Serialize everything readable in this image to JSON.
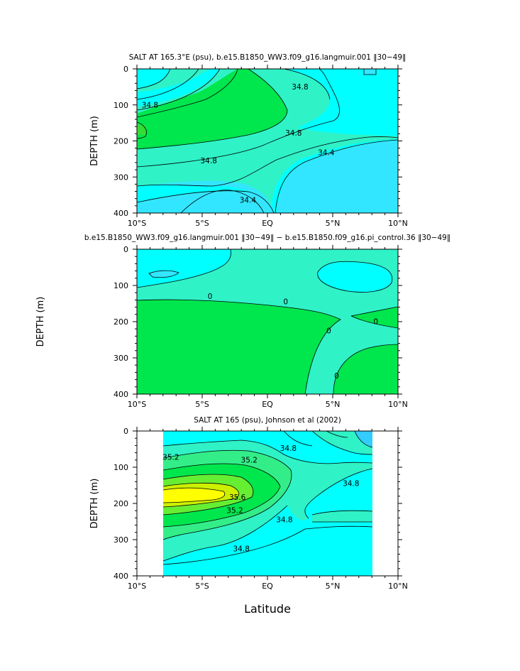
{
  "chart_data": [
    {
      "type": "contour",
      "title": "SALT AT 165.3°E (psu), b.e15.B1850_WW3.f09_g16.langmuir.001 ‖30−49‖",
      "ylabel": "DEPTH (m)",
      "xlabel": "",
      "xlim": [
        -10,
        10
      ],
      "ylim": [
        400,
        0
      ],
      "x_ticks": [
        "10°S",
        "5°S",
        "EQ",
        "5°N",
        "10°N"
      ],
      "y_ticks": [
        "0",
        "100",
        "200",
        "300",
        "400"
      ],
      "contour_labels": [
        {
          "text": "34.8",
          "x": -9.0,
          "y": 100
        },
        {
          "text": "34.8",
          "x": 2.5,
          "y": 50
        },
        {
          "text": "34.8",
          "x": -4.5,
          "y": 255
        },
        {
          "text": "34.8",
          "x": 2.0,
          "y": 178
        },
        {
          "text": "34.4",
          "x": 4.5,
          "y": 233
        },
        {
          "text": "34.4",
          "x": -1.5,
          "y": 365
        }
      ],
      "colors": {
        "low": "#33e6ff",
        "mid_low": "#00ffff",
        "mid": "#2ff2c7",
        "high": "#00e64d"
      }
    },
    {
      "type": "contour",
      "title": "b.e15.B1850_WW3.f09_g16.langmuir.001 ‖30−49‖ − b.e15.B1850.f09_g16.pi_control.36 ‖30−49‖",
      "ylabel": "DEPTH (m)",
      "xlabel": "",
      "xlim": [
        -10,
        10
      ],
      "ylim": [
        400,
        0
      ],
      "x_ticks": [
        "10°S",
        "5°S",
        "EQ",
        "5°N",
        "10°N"
      ],
      "y_ticks": [
        "0",
        "100",
        "200",
        "300",
        "400"
      ],
      "contour_labels": [
        {
          "text": "0",
          "x": -4.4,
          "y": 130
        },
        {
          "text": "0",
          "x": 1.4,
          "y": 145
        },
        {
          "text": "0",
          "x": 4.7,
          "y": 225
        },
        {
          "text": "0",
          "x": 8.3,
          "y": 200
        },
        {
          "text": "0",
          "x": 5.3,
          "y": 350
        }
      ],
      "colors": {
        "negative": "#00ffff",
        "near_zero": "#2ff2c7",
        "positive": "#00e64d"
      }
    },
    {
      "type": "contour",
      "title": "SALT AT 165 (psu), Johnson et al (2002)",
      "ylabel": "DEPTH (m)",
      "xlabel": "Latitude",
      "xlim": [
        -10,
        10
      ],
      "ylim": [
        400,
        0
      ],
      "data_range_x": [
        -8,
        8
      ],
      "x_ticks": [
        "10°S",
        "5°S",
        "EQ",
        "5°N",
        "10°N"
      ],
      "y_ticks": [
        "0",
        "100",
        "200",
        "300",
        "400"
      ],
      "contour_labels": [
        {
          "text": "35.2",
          "x": -7.4,
          "y": 73
        },
        {
          "text": "35.2",
          "x": -1.4,
          "y": 80
        },
        {
          "text": "35.6",
          "x": -2.3,
          "y": 183
        },
        {
          "text": "35.2",
          "x": -2.5,
          "y": 220
        },
        {
          "text": "34.8",
          "x": 1.6,
          "y": 48
        },
        {
          "text": "34.8",
          "x": 6.4,
          "y": 145
        },
        {
          "text": "34.8",
          "x": 1.3,
          "y": 245
        },
        {
          "text": "34.8",
          "x": -2.0,
          "y": 325
        }
      ],
      "colors": {
        "low": "#33ccff",
        "base": "#00ffff",
        "c1": "#2ff2c7",
        "c2": "#33ee88",
        "c3": "#00e64d",
        "c4": "#66ee33",
        "c5": "#ccf000",
        "c6": "#ffff00"
      }
    }
  ]
}
